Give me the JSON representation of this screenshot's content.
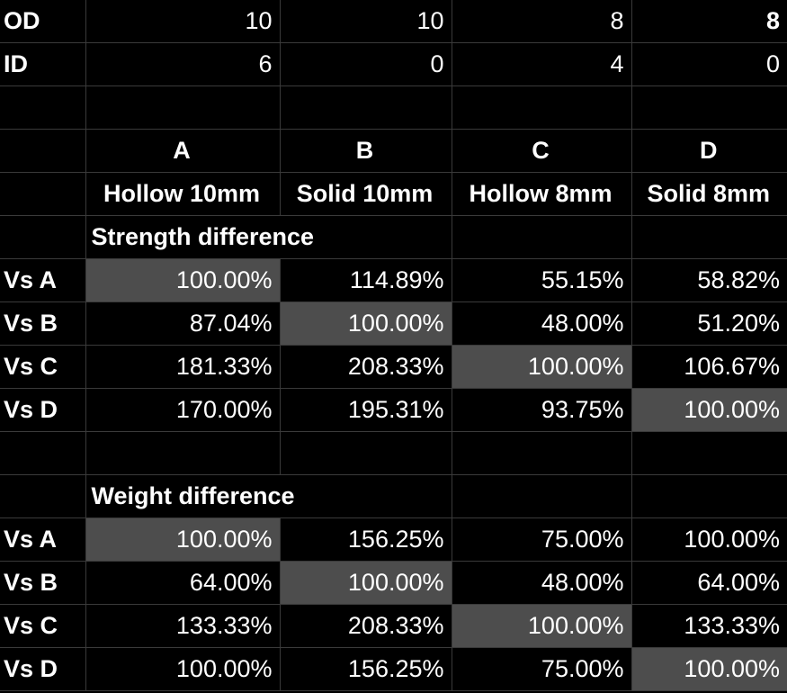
{
  "od": {
    "label": "OD",
    "values": [
      "10",
      "10",
      "8",
      "8"
    ]
  },
  "id": {
    "label": "ID",
    "values": [
      "6",
      "0",
      "4",
      "0"
    ]
  },
  "letters": [
    "A",
    "B",
    "C",
    "D"
  ],
  "names": [
    "Hollow 10mm",
    "Solid 10mm",
    "Hollow 8mm",
    "Solid 8mm"
  ],
  "strength": {
    "title": "Strength difference",
    "rows": [
      {
        "label": "Vs A",
        "values": [
          "100.00%",
          "114.89%",
          "55.15%",
          "58.82%"
        ]
      },
      {
        "label": "Vs B",
        "values": [
          "87.04%",
          "100.00%",
          "48.00%",
          "51.20%"
        ]
      },
      {
        "label": "Vs C",
        "values": [
          "181.33%",
          "208.33%",
          "100.00%",
          "106.67%"
        ]
      },
      {
        "label": "Vs D",
        "values": [
          "170.00%",
          "195.31%",
          "93.75%",
          "100.00%"
        ]
      }
    ]
  },
  "weight": {
    "title": "Weight difference",
    "rows": [
      {
        "label": "Vs A",
        "values": [
          "100.00%",
          "156.25%",
          "75.00%",
          "100.00%"
        ]
      },
      {
        "label": "Vs B",
        "values": [
          "64.00%",
          "100.00%",
          "48.00%",
          "64.00%"
        ]
      },
      {
        "label": "Vs C",
        "values": [
          "133.33%",
          "208.33%",
          "100.00%",
          "133.33%"
        ]
      },
      {
        "label": "Vs D",
        "values": [
          "100.00%",
          "156.25%",
          "75.00%",
          "100.00%"
        ]
      }
    ]
  },
  "colors": {
    "background": "#000000",
    "highlight": "#4d4d4d",
    "grid": "#3a3a3a",
    "text": "#ffffff"
  }
}
